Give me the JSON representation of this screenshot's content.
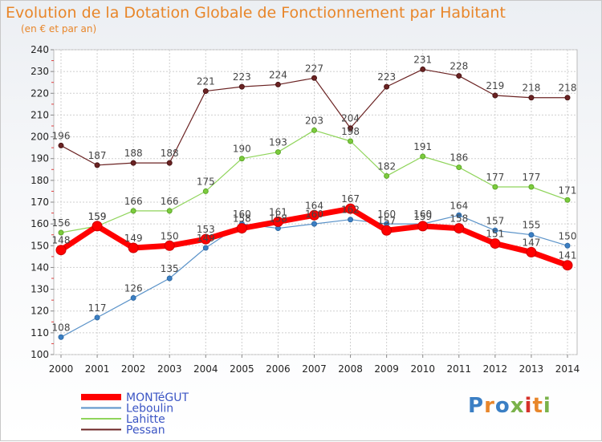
{
  "title": "Evolution de la Dotation Globale de Fonctionnement par Habitant",
  "subtitle": "(en € et par an)",
  "logo": {
    "letters": [
      "P",
      "r",
      "o",
      "x",
      "i",
      "t",
      "i"
    ],
    "colors": [
      "#3b7fc4",
      "#e8862a",
      "#3b7fc4",
      "#7ab24a",
      "#d6322b",
      "#e8862a",
      "#7ab24a"
    ]
  },
  "chart_data": {
    "type": "line",
    "x": [
      "2000",
      "2001",
      "2002",
      "2003",
      "2004",
      "2005",
      "2006",
      "2007",
      "2008",
      "2009",
      "2010",
      "2011",
      "2012",
      "2013",
      "2014"
    ],
    "ylim": [
      100,
      240
    ],
    "yticks": [
      100,
      110,
      120,
      130,
      140,
      150,
      160,
      170,
      180,
      190,
      200,
      210,
      220,
      230,
      240
    ],
    "grid": true,
    "legend_position": "bottom-left",
    "series": [
      {
        "name": "MONTéGUT",
        "color": "#ff0000",
        "values": [
          148,
          159,
          149,
          150,
          153,
          158,
          161,
          164,
          167,
          157,
          159,
          158,
          151,
          147,
          141
        ]
      },
      {
        "name": "Leboulin",
        "color": "#5b93c9",
        "values": [
          108,
          117,
          126,
          135,
          149,
          160,
          158,
          160,
          162,
          160,
          160,
          164,
          157,
          155,
          150
        ]
      },
      {
        "name": "Lahitte",
        "color": "#8fd45a",
        "values": [
          156,
          159,
          166,
          166,
          175,
          190,
          193,
          203,
          198,
          182,
          191,
          186,
          177,
          177,
          171
        ]
      },
      {
        "name": "Pessan",
        "color": "#6b2323",
        "values": [
          196,
          187,
          188,
          188,
          221,
          223,
          224,
          227,
          204,
          223,
          231,
          228,
          219,
          218,
          218
        ]
      }
    ]
  }
}
